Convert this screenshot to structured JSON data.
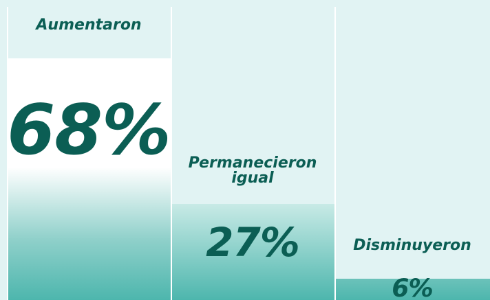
{
  "chart_data": {
    "type": "bar",
    "categories": [
      "Aumentaron",
      "Permanecieron igual",
      "Disminuyeron"
    ],
    "values": [
      68,
      27,
      6
    ],
    "value_labels": [
      "68%",
      "27%",
      "6%"
    ],
    "color": "#4db6ad"
  }
}
